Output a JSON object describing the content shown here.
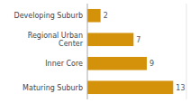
{
  "chart_data": {
    "type": "bar",
    "orientation": "horizontal",
    "categories": [
      "Developing Suburb",
      "Regional Urban\nCenter",
      "Inner Core",
      "Maturing Suburb"
    ],
    "values": [
      2,
      7,
      9,
      13
    ],
    "color": "#D4920A",
    "xlim": [
      0,
      15
    ],
    "data_labels": true,
    "tick_labels": "y",
    "grid": false
  }
}
